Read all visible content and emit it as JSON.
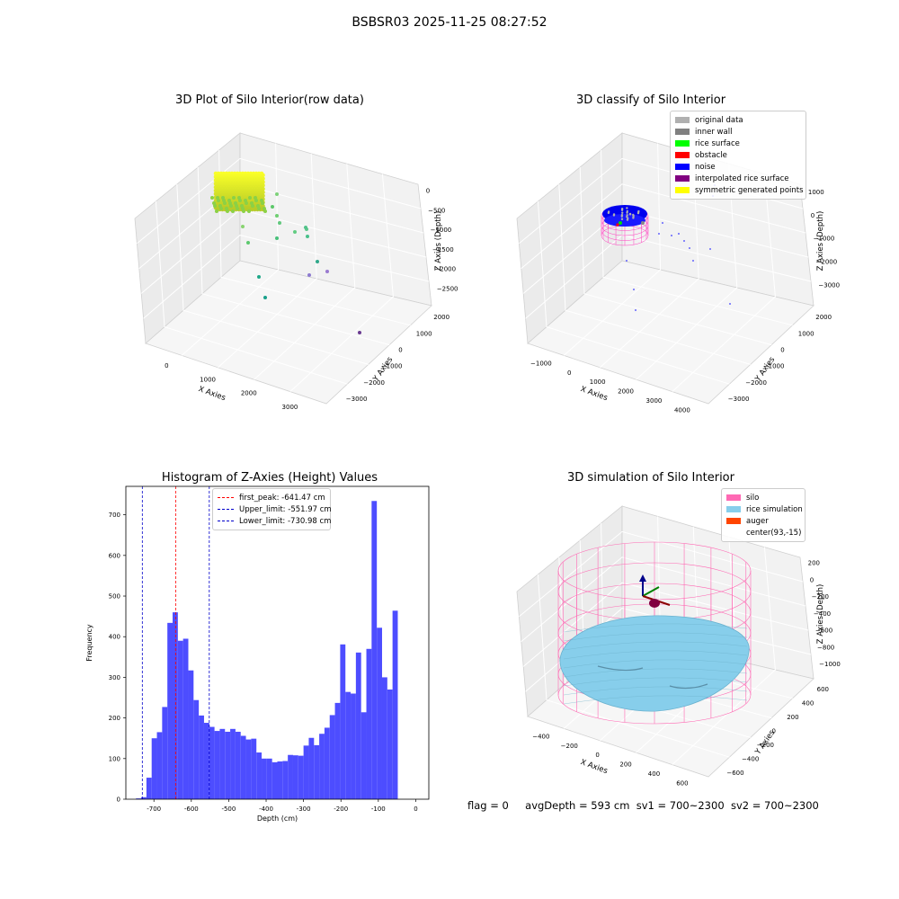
{
  "suptitle": "BSBSR03 2025-11-25 08:27:52",
  "panels": {
    "raw": {
      "title": "3D Plot of Silo Interior(row data)",
      "xlabel": "X Axies",
      "ylabel": "Y Axies",
      "zlabel": "Z Axies (Depth)",
      "xticks": [
        "0",
        "1000",
        "2000",
        "3000"
      ],
      "yticks": [
        "2000",
        "1000",
        "0",
        "−1000",
        "−2000",
        "−3000"
      ],
      "zticks": [
        "0",
        "−500",
        "−1000",
        "−1500",
        "−2000",
        "−2500"
      ]
    },
    "classify": {
      "title": "3D classify of Silo Interior",
      "xlabel": "X Axies",
      "ylabel": "Y Axies",
      "zlabel": "Z Axies (Depth)",
      "xticks": [
        "−1000",
        "0",
        "1000",
        "2000",
        "3000",
        "4000"
      ],
      "yticks": [
        "2000",
        "1000",
        "0",
        "−1000",
        "−2000",
        "−3000"
      ],
      "zticks": [
        "1000",
        "0",
        "−1000",
        "−2000",
        "−3000"
      ],
      "legend": [
        {
          "label": "original data",
          "color": "#b0b0b0"
        },
        {
          "label": "inner wall",
          "color": "#808080"
        },
        {
          "label": "rice surface",
          "color": "#00ff00"
        },
        {
          "label": "obstacle",
          "color": "#ff0000"
        },
        {
          "label": "noise",
          "color": "#0000ff"
        },
        {
          "label": "interpolated rice surface",
          "color": "#800080"
        },
        {
          "label": "symmetric generated points",
          "color": "#ffff00"
        }
      ]
    },
    "histogram": {
      "title": "Histogram of Z-Axies (Height) Values",
      "legend": [
        {
          "label": "first_peak: -641.47 cm",
          "color": "#ff0000"
        },
        {
          "label": "Upper_limit: -551.97 cm",
          "color": "#0000cc"
        },
        {
          "label": "Lower_limit: -730.98 cm",
          "color": "#0000cc"
        }
      ]
    },
    "simulation": {
      "title": "3D simulation of Silo Interior",
      "xlabel": "X Axies",
      "ylabel": "Y Axies",
      "zlabel": "Z Axies (Depth)",
      "xticks": [
        "−400",
        "−200",
        "0",
        "200",
        "400",
        "600"
      ],
      "yticks": [
        "600",
        "400",
        "200",
        "0",
        "−200",
        "−400",
        "−600"
      ],
      "zticks": [
        "200",
        "0",
        "−200",
        "−400",
        "−600",
        "−800",
        "−1000"
      ],
      "legend": [
        {
          "label": "silo",
          "color": "#ff69b4"
        },
        {
          "label": "rice simulation",
          "color": "#87ceeb"
        },
        {
          "label": "auger",
          "color": "#ff4500"
        },
        {
          "label": "center(93,-15)",
          "color": "#ffffff"
        }
      ]
    }
  },
  "status": {
    "flag": "flag = 0",
    "avg": "avgDepth = 593 cm",
    "sv1": "sv1 = 700~2300",
    "sv2": "sv2 = 700~2300"
  },
  "chart_data": {
    "type": "bar",
    "title": "Histogram of Z-Axies (Height) Values",
    "xlabel": "Depth (cm)",
    "ylabel": "Frequency",
    "xlim": [
      -775,
      35
    ],
    "ylim": [
      0,
      770
    ],
    "xticks": [
      -700,
      -600,
      -500,
      -400,
      -300,
      -200,
      -100,
      0
    ],
    "yticks": [
      0,
      100,
      200,
      300,
      400,
      500,
      600,
      700
    ],
    "bin_width": 14,
    "bin_start": -748,
    "values": [
      2,
      5,
      53,
      150,
      165,
      227,
      434,
      460,
      390,
      395,
      317,
      244,
      206,
      188,
      178,
      168,
      173,
      166,
      173,
      166,
      156,
      147,
      149,
      115,
      100,
      100,
      91,
      93,
      94,
      109,
      108,
      107,
      132,
      151,
      133,
      161,
      176,
      207,
      237,
      381,
      264,
      260,
      361,
      214,
      370,
      734,
      422,
      300,
      270,
      464
    ],
    "color": "#4d4dff",
    "vlines": [
      {
        "x": -641.47,
        "color": "#ff0000"
      },
      {
        "x": -551.97,
        "color": "#0000cc"
      },
      {
        "x": -730.98,
        "color": "#0000cc"
      }
    ]
  }
}
